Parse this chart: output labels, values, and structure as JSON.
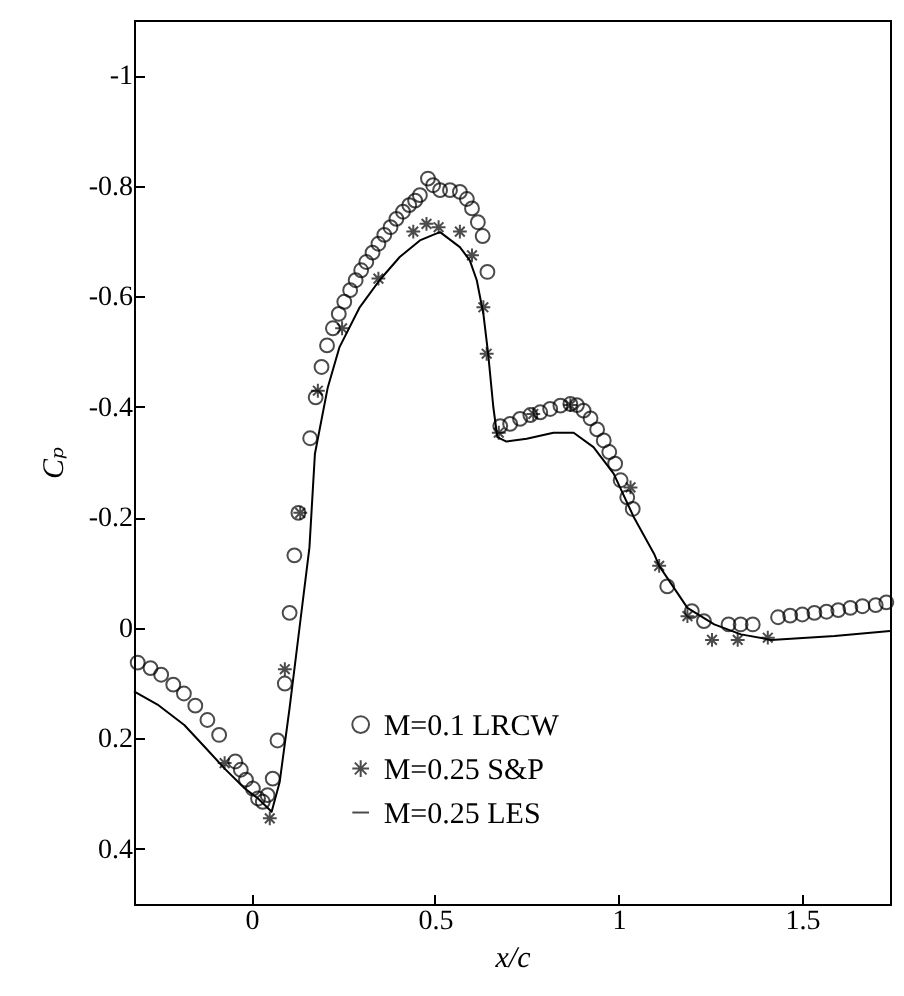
{
  "chart_data": {
    "type": "scatter",
    "xlabel": "x/c",
    "ylabel": "Cₚ",
    "xlim": [
      -0.32,
      1.74
    ],
    "ylim": [
      0.5,
      -1.1
    ],
    "xticks": [
      0,
      0.5,
      1,
      1.5
    ],
    "yticks": [
      0.4,
      0.2,
      0,
      -0.2,
      -0.4,
      -0.6,
      -0.8,
      -1
    ],
    "grid": false,
    "legend": "bottom",
    "line_style": "solid",
    "series": [
      {
        "name": "M=0.1 LRCW",
        "marker": "circle",
        "color": "#000000",
        "x": [
          -0.31,
          -0.275,
          -0.246,
          -0.213,
          -0.184,
          -0.153,
          -0.12,
          -0.088,
          -0.044,
          -0.029,
          -0.015,
          0.004,
          0.018,
          0.031,
          0.044,
          0.058,
          0.071,
          0.091,
          0.104,
          0.117,
          0.128,
          0.16,
          0.175,
          0.191,
          0.206,
          0.222,
          0.238,
          0.253,
          0.269,
          0.284,
          0.299,
          0.313,
          0.33,
          0.346,
          0.362,
          0.379,
          0.395,
          0.413,
          0.43,
          0.446,
          0.459,
          0.481,
          0.495,
          0.514,
          0.541,
          0.568,
          0.587,
          0.601,
          0.617,
          0.63,
          0.643,
          0.678,
          0.705,
          0.732,
          0.76,
          0.787,
          0.814,
          0.842,
          0.869,
          0.887,
          0.905,
          0.924,
          0.942,
          0.96,
          0.975,
          0.991,
          1.006,
          1.024,
          1.039,
          1.133,
          1.2,
          1.233,
          1.3,
          1.333,
          1.366,
          1.435,
          1.468,
          1.501,
          1.534,
          1.567,
          1.599,
          1.632,
          1.665,
          1.701,
          1.73
        ],
        "values": [
          0.063,
          0.073,
          0.085,
          0.103,
          0.119,
          0.141,
          0.167,
          0.194,
          0.242,
          0.257,
          0.275,
          0.291,
          0.309,
          0.315,
          0.303,
          0.273,
          0.204,
          0.101,
          -0.027,
          -0.131,
          -0.208,
          -0.343,
          -0.417,
          -0.472,
          -0.511,
          -0.542,
          -0.568,
          -0.59,
          -0.611,
          -0.629,
          -0.647,
          -0.662,
          -0.679,
          -0.695,
          -0.711,
          -0.725,
          -0.74,
          -0.753,
          -0.765,
          -0.773,
          -0.783,
          -0.813,
          -0.801,
          -0.792,
          -0.792,
          -0.789,
          -0.776,
          -0.759,
          -0.734,
          -0.709,
          -0.644,
          -0.365,
          -0.369,
          -0.378,
          -0.385,
          -0.39,
          -0.396,
          -0.402,
          -0.405,
          -0.403,
          -0.393,
          -0.379,
          -0.359,
          -0.339,
          -0.318,
          -0.297,
          -0.267,
          -0.236,
          -0.215,
          -0.075,
          -0.03,
          -0.012,
          -0.006,
          -0.006,
          -0.006,
          -0.019,
          -0.022,
          -0.024,
          -0.027,
          -0.029,
          -0.032,
          -0.036,
          -0.039,
          -0.041,
          -0.046
        ]
      },
      {
        "name": "M=0.25 S&P",
        "marker": "cross",
        "color": "#000000",
        "x": [
          -0.073,
          0.05,
          0.091,
          0.133,
          0.181,
          0.247,
          0.346,
          0.441,
          0.477,
          0.51,
          0.568,
          0.601,
          0.632,
          0.641,
          0.674,
          0.768,
          0.869,
          1.033,
          1.111,
          1.188,
          1.255,
          1.325,
          1.407
        ],
        "values": [
          0.245,
          0.345,
          0.075,
          -0.208,
          -0.429,
          -0.542,
          -0.632,
          -0.717,
          -0.731,
          -0.725,
          -0.717,
          -0.674,
          -0.58,
          -0.496,
          -0.353,
          -0.387,
          -0.403,
          -0.254,
          -0.112,
          -0.021,
          0.022,
          0.022,
          0.018
        ]
      },
      {
        "name": "M=0.25 LES",
        "type": "line",
        "color": "#000000",
        "x": [
          -0.32,
          -0.256,
          -0.183,
          -0.124,
          -0.073,
          -0.018,
          0.018,
          0.055,
          0.077,
          0.104,
          0.131,
          0.158,
          0.173,
          0.208,
          0.24,
          0.295,
          0.349,
          0.404,
          0.459,
          0.495,
          0.514,
          0.568,
          0.595,
          0.614,
          0.632,
          0.645,
          0.659,
          0.67,
          0.695,
          0.75,
          0.823,
          0.878,
          0.932,
          0.987,
          1.042,
          1.097,
          1.111,
          1.188,
          1.261,
          1.334,
          1.416,
          1.589,
          1.74
        ],
        "values": [
          0.115,
          0.139,
          0.176,
          0.218,
          0.255,
          0.291,
          0.309,
          0.333,
          0.279,
          0.145,
          0,
          -0.145,
          -0.315,
          -0.435,
          -0.508,
          -0.58,
          -0.629,
          -0.671,
          -0.701,
          -0.711,
          -0.716,
          -0.689,
          -0.665,
          -0.629,
          -0.568,
          -0.496,
          -0.4,
          -0.345,
          -0.337,
          -0.342,
          -0.353,
          -0.353,
          -0.327,
          -0.279,
          -0.2,
          -0.134,
          -0.112,
          -0.036,
          -0.006,
          0.012,
          0.022,
          0.015,
          0.006
        ]
      }
    ]
  }
}
